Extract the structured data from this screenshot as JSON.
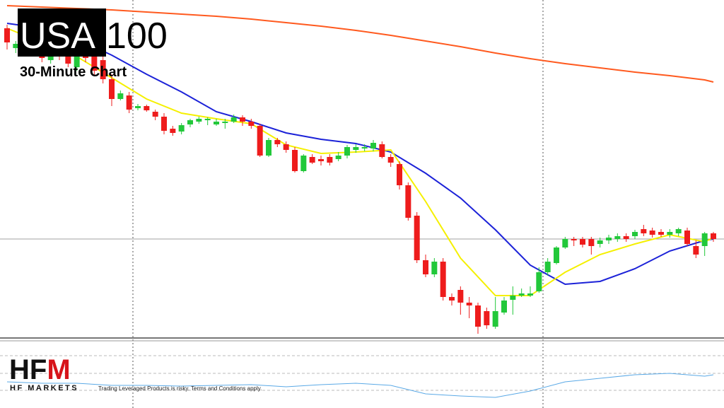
{
  "header": {
    "title_highlight": "USA",
    "title": "100",
    "subtitle": "30-Minute Chart"
  },
  "logo": {
    "mark_dark": "HF",
    "mark_red": "M",
    "name": "HF MARKETS"
  },
  "disclaimer": "Trading Leveraged Products is risky. Terms and Conditions apply.",
  "chart_data": [
    {
      "type": "candlestick",
      "up_color": "#22c83a",
      "down_color": "#ee1c1c",
      "ylim": [
        0,
        480
      ],
      "price_line": 142,
      "open": [
        440,
        412,
        418,
        420,
        408,
        395,
        412,
        410,
        385,
        405,
        400,
        395,
        368,
        340,
        345,
        327,
        330,
        322,
        315,
        298,
        294,
        304,
        308,
        310,
        304,
        306,
        308,
        314,
        308,
        302,
        260,
        282,
        276,
        268,
        238,
        258,
        255,
        258,
        255,
        260,
        268,
        270,
        270,
        276,
        258,
        248,
        218,
        175,
        112,
        92,
        110,
        60,
        70,
        52,
        48,
        40,
        18,
        38,
        56,
        62,
        62,
        68,
        95,
        108,
        130,
        142,
        142,
        142,
        135,
        140,
        142,
        146,
        146,
        156,
        154,
        152,
        148,
        150,
        154,
        132,
        132,
        150
      ],
      "high": [
        445,
        422,
        425,
        425,
        415,
        418,
        420,
        415,
        410,
        410,
        405,
        400,
        375,
        352,
        350,
        333,
        332,
        325,
        320,
        302,
        306,
        312,
        315,
        314,
        312,
        312,
        318,
        317,
        312,
        305,
        285,
        285,
        280,
        272,
        262,
        262,
        260,
        262,
        265,
        275,
        276,
        276,
        282,
        280,
        262,
        252,
        222,
        180,
        120,
        115,
        115,
        65,
        75,
        60,
        52,
        45,
        60,
        60,
        75,
        72,
        75,
        102,
        115,
        132,
        145,
        145,
        145,
        145,
        144,
        148,
        150,
        150,
        155,
        162,
        158,
        156,
        156,
        158,
        158,
        140,
        152,
        152
      ],
      "low": [
        410,
        405,
        400,
        402,
        392,
        390,
        395,
        385,
        380,
        392,
        372,
        362,
        330,
        338,
        320,
        324,
        322,
        310,
        290,
        288,
        290,
        300,
        305,
        303,
        302,
        298,
        306,
        302,
        298,
        258,
        258,
        272,
        264,
        236,
        236,
        248,
        246,
        246,
        252,
        256,
        264,
        266,
        266,
        256,
        244,
        212,
        168,
        108,
        88,
        88,
        55,
        48,
        35,
        30,
        8,
        15,
        15,
        35,
        35,
        60,
        60,
        66,
        90,
        106,
        128,
        132,
        130,
        120,
        130,
        135,
        138,
        138,
        142,
        146,
        144,
        145,
        144,
        146,
        132,
        115,
        118,
        138
      ],
      "close": [
        420,
        418,
        405,
        408,
        398,
        412,
        400,
        390,
        405,
        398,
        380,
        368,
        340,
        348,
        325,
        330,
        324,
        315,
        295,
        292,
        303,
        310,
        312,
        312,
        308,
        308,
        314,
        308,
        302,
        260,
        282,
        276,
        268,
        238,
        260,
        250,
        252,
        250,
        260,
        272,
        272,
        272,
        278,
        258,
        250,
        218,
        172,
        112,
        92,
        110,
        60,
        55,
        52,
        48,
        18,
        20,
        40,
        55,
        62,
        65,
        65,
        95,
        110,
        130,
        142,
        140,
        134,
        132,
        140,
        144,
        146,
        142,
        152,
        150,
        148,
        148,
        152,
        156,
        135,
        120,
        150,
        142
      ],
      "series": [
        {
          "color": "#ff5a1f",
          "x": [
            0,
            4,
            8,
            12,
            16,
            20,
            24,
            28,
            32,
            36,
            40,
            44,
            48,
            52,
            56,
            60,
            64,
            68,
            72,
            76,
            80,
            81
          ],
          "values": [
            472,
            470,
            468,
            466,
            463,
            460,
            457,
            453,
            448,
            443,
            437,
            430,
            422,
            414,
            405,
            397,
            390,
            384,
            378,
            373,
            367,
            364
          ]
        },
        {
          "color": "#1c22d8",
          "x": [
            0,
            4,
            8,
            12,
            16,
            20,
            24,
            28,
            32,
            36,
            40,
            44,
            48,
            52,
            56,
            60,
            64,
            68,
            72,
            76,
            80,
            81
          ],
          "values": [
            447,
            440,
            425,
            402,
            375,
            350,
            322,
            308,
            292,
            283,
            277,
            265,
            235,
            200,
            155,
            105,
            78,
            82,
            100,
            125,
            140,
            142
          ]
        },
        {
          "color": "#f5f000",
          "x": [
            0,
            4,
            8,
            12,
            16,
            20,
            24,
            28,
            32,
            36,
            40,
            44,
            48,
            52,
            56,
            60,
            64,
            68,
            72,
            76,
            80,
            81
          ],
          "values": [
            440,
            420,
            400,
            370,
            340,
            320,
            312,
            305,
            275,
            263,
            265,
            268,
            195,
            115,
            62,
            62,
            95,
            120,
            135,
            148,
            138,
            144
          ]
        }
      ]
    },
    {
      "type": "line",
      "ylim": [
        0,
        97
      ],
      "series": [
        {
          "color": "#5aa9e6",
          "x": [
            0,
            4,
            8,
            12,
            16,
            20,
            24,
            28,
            32,
            36,
            40,
            44,
            48,
            52,
            56,
            60,
            64,
            68,
            72,
            76,
            80,
            81
          ],
          "values": [
            37,
            35,
            35,
            32,
            32,
            31,
            32,
            33,
            30,
            33,
            35,
            32,
            20,
            17,
            15,
            24,
            37,
            42,
            47,
            49,
            45,
            47
          ]
        }
      ]
    }
  ]
}
